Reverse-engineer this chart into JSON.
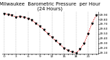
{
  "title": "Milwaukee  Barometric Pressure  per Hour\n(24 Hours)",
  "hours": [
    0,
    1,
    2,
    3,
    4,
    5,
    6,
    7,
    8,
    9,
    10,
    11,
    12,
    13,
    14,
    15,
    16,
    17,
    18,
    19,
    20,
    21,
    22,
    23
  ],
  "pressure": [
    29.92,
    29.9,
    29.88,
    29.85,
    29.86,
    29.84,
    29.82,
    29.78,
    29.72,
    29.65,
    29.58,
    29.5,
    29.42,
    29.35,
    29.28,
    29.2,
    29.15,
    29.12,
    29.1,
    29.18,
    29.3,
    29.5,
    29.72,
    29.88
  ],
  "ylim": [
    29.08,
    29.96
  ],
  "yticks": [
    29.1,
    29.2,
    29.3,
    29.4,
    29.5,
    29.6,
    29.7,
    29.8,
    29.9
  ],
  "line_color": "#dd0000",
  "marker_color": "#000000",
  "grid_color": "#888888",
  "bg_color": "#ffffff",
  "title_color": "#000000",
  "title_fontsize": 5.0,
  "tick_fontsize": 3.2,
  "xtick_pos": [
    0,
    1,
    2,
    3,
    4,
    5,
    6,
    7,
    8,
    9,
    10,
    11,
    12,
    13,
    14,
    15,
    16,
    17,
    18,
    19,
    20,
    21,
    22,
    23
  ],
  "xtick_labels": [
    "0",
    "",
    "",
    "3",
    "",
    "",
    "6",
    "",
    "",
    "9",
    "",
    "",
    "12",
    "",
    "",
    "15",
    "",
    "",
    "18",
    "",
    "",
    "21",
    "",
    ""
  ],
  "grid_lines": [
    0,
    3,
    6,
    9,
    12,
    15,
    18,
    21,
    23
  ]
}
